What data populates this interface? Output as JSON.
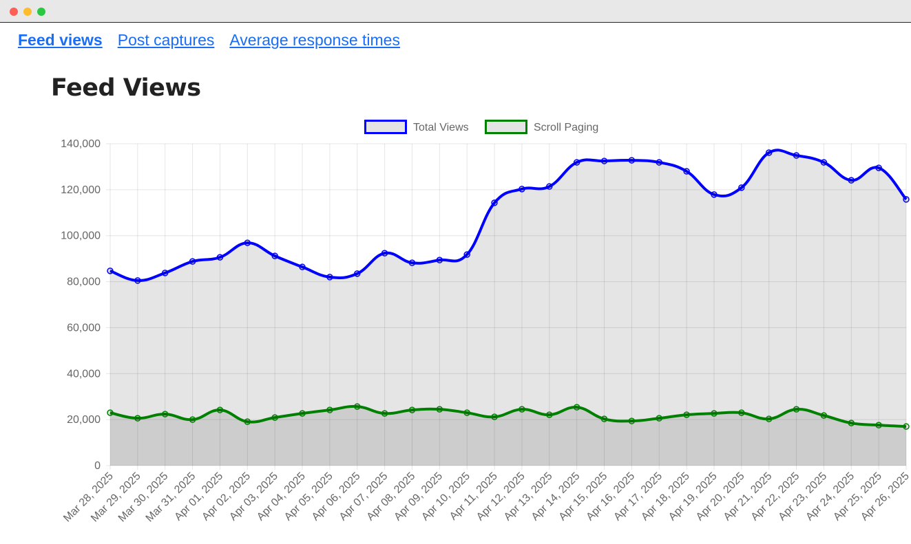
{
  "window": {
    "controls": [
      "close",
      "minimize",
      "maximize"
    ]
  },
  "nav": {
    "tabs": [
      {
        "label": "Feed views",
        "active": true
      },
      {
        "label": "Post captures",
        "active": false
      },
      {
        "label": "Average response times",
        "active": false
      }
    ]
  },
  "page_title": "Feed Views",
  "chart_data": {
    "type": "line",
    "title": "",
    "xlabel": "",
    "ylabel": "",
    "ylim": [
      0,
      140000
    ],
    "yticks": [
      "0",
      "20,000",
      "40,000",
      "60,000",
      "80,000",
      "100,000",
      "120,000",
      "140,000"
    ],
    "grid": true,
    "legend": "top",
    "fill": "to-origin",
    "categories": [
      "Mar 28, 2025",
      "Mar 29, 2025",
      "Mar 30, 2025",
      "Mar 31, 2025",
      "Apr 01, 2025",
      "Apr 02, 2025",
      "Apr 03, 2025",
      "Apr 04, 2025",
      "Apr 05, 2025",
      "Apr 06, 2025",
      "Apr 07, 2025",
      "Apr 08, 2025",
      "Apr 09, 2025",
      "Apr 10, 2025",
      "Apr 11, 2025",
      "Apr 12, 2025",
      "Apr 13, 2025",
      "Apr 14, 2025",
      "Apr 15, 2025",
      "Apr 16, 2025",
      "Apr 17, 2025",
      "Apr 18, 2025",
      "Apr 19, 2025",
      "Apr 20, 2025",
      "Apr 21, 2025",
      "Apr 22, 2025",
      "Apr 23, 2025",
      "Apr 24, 2025",
      "Apr 25, 2025",
      "Apr 26, 2025"
    ],
    "series": [
      {
        "name": "Total Views",
        "color": "#0000ff",
        "values": [
          84700,
          80500,
          83800,
          88800,
          90600,
          96900,
          91200,
          86400,
          82000,
          83500,
          92400,
          88200,
          89400,
          91800,
          114300,
          120300,
          121400,
          131900,
          132500,
          132800,
          131900,
          128000,
          117900,
          120900,
          136100,
          134900,
          131900,
          124100,
          129500,
          115800
        ]
      },
      {
        "name": "Scroll Paging",
        "color": "#008000",
        "values": [
          23000,
          20600,
          22400,
          20000,
          24200,
          19100,
          20900,
          22700,
          24200,
          25700,
          22700,
          24200,
          24500,
          23000,
          21200,
          24500,
          22100,
          25400,
          20300,
          19400,
          20600,
          22100,
          22700,
          23000,
          20300,
          24500,
          21800,
          18500,
          17600,
          17000
        ]
      }
    ]
  }
}
